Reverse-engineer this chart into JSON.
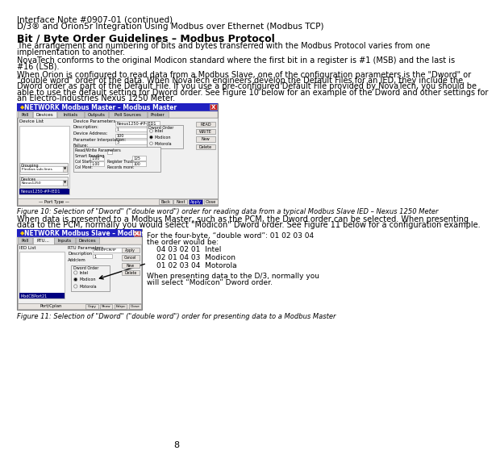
{
  "header_line1": "Interface Note #0907-01 (continued)",
  "header_line2": "D/3® and Orion5r Integration Using Modbus over Ethernet (Modbus TCP)",
  "section_title": "Bit / Byte Order Guidelines – Modbus Protocol",
  "para1": "The arrangement and numbering of bits and bytes transferred with the Modbus Protocol varies from one\nimplementation to another.",
  "para2": "NovaTech conforms to the original Modicon standard where the first bit in a register is #1 (MSB) and the last is\n#16 (LSB).",
  "para3": "When Orion is configured to read data from a Modbus Slave, one of the configuration parameters is the \"Dword\" or\n\"double word\" order of the data. When NovaTech engineers develop the Default Files for an IED, they include the\nDword order as part of the Default File. If you use a pre-configured Default File provided by NovaTech, you should be\nable to use the default setting for Dword order. See Figure 10 below for an example of the Dword and other settings for\nan Electro-Industries Nexus 1250 Meter.",
  "fig10_caption": "Figure 10: Selection of \"Dword\" (\"double word\") order for reading data from a typical Modbus Slave IED – Nexus 1250 Meter",
  "para4": "When data is presented to a Modbus Master, such as the PCM, the Dword order can be selected. When presenting\ndata to the PCM, normally you would select \"Modicon\" Dword order. See Figure 11 below for a configuration example.",
  "fig11_caption": "Figure 11: Selection of \"Dword\" (\"double word\") order for presenting data to a Modbus Master",
  "ann_line1": "For the four-byte, “double word”: 01 02 03 04",
  "ann_line2": "the order would be:",
  "ann_intel": "04 03 02 01  Intel",
  "ann_modicon": "02 01 04 03  Modicon",
  "ann_motorola": "01 02 03 04  Motorola",
  "ann_footer1": "When presenting data to the D/3, normally you",
  "ann_footer2": "will select “Modicon” Dword order.",
  "page_number": "8",
  "bg_color": "#ffffff",
  "text_color": "#000000",
  "title_bar_color": "#2020c0",
  "close_btn_color": "#cc2020",
  "tab_active": "#f0f0f0",
  "tab_inactive": "#c8c8c8",
  "dialog_bg": "#e8e4e0",
  "content_bg": "#f0f0f0",
  "input_bg": "#ffffff",
  "selected_bg": "#000080"
}
